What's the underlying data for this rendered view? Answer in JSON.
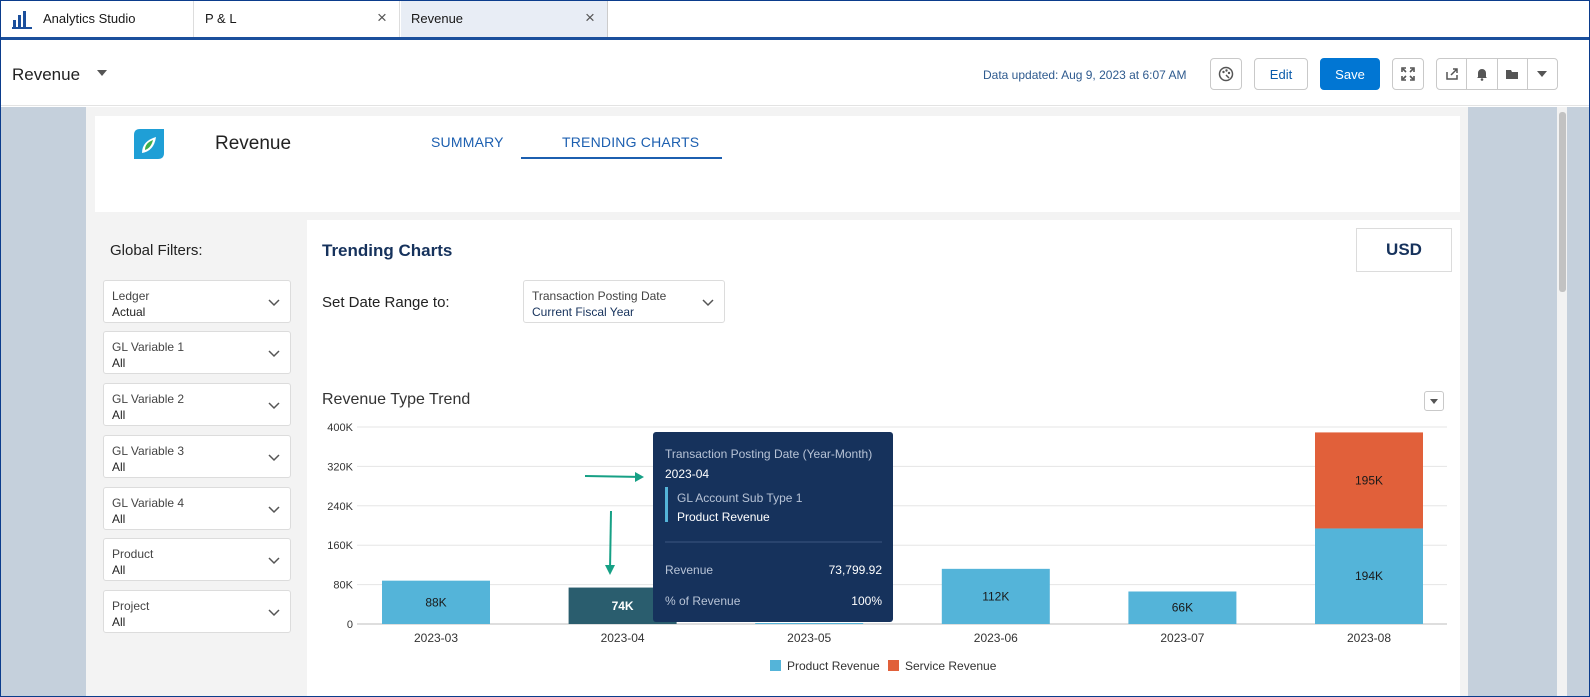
{
  "tabs": {
    "app_name": "Analytics Studio",
    "items": [
      {
        "label": "P & L"
      },
      {
        "label": "Revenue"
      }
    ]
  },
  "header": {
    "title": "Revenue",
    "data_updated": "Data updated: Aug 9, 2023 at 6:07 AM",
    "edit_label": "Edit",
    "save_label": "Save"
  },
  "dashboard": {
    "title": "Revenue",
    "nav_tabs": [
      "SUMMARY",
      "TRENDING CHARTS"
    ],
    "active_tab": "TRENDING CHARTS"
  },
  "filters": {
    "title": "Global Filters:",
    "items": [
      {
        "label": "Ledger",
        "value": "Actual"
      },
      {
        "label": "GL Variable 1",
        "value": "All"
      },
      {
        "label": "GL Variable 2",
        "value": "All"
      },
      {
        "label": "GL Variable 3",
        "value": "All"
      },
      {
        "label": "GL Variable 4",
        "value": "All"
      },
      {
        "label": "Product",
        "value": "All"
      },
      {
        "label": "Project",
        "value": "All"
      }
    ]
  },
  "main": {
    "title": "Trending Charts",
    "currency": "USD",
    "date_range_label": "Set Date Range to:",
    "date_selector": {
      "label": "Transaction Posting Date",
      "value": "Current Fiscal Year"
    }
  },
  "colors": {
    "product": "#54b4d9",
    "product_highlight": "#2a5d6e",
    "service": "#e1603a",
    "tooltip_bg": "#16325c",
    "arrow": "#16a085"
  },
  "chart_data": {
    "type": "bar",
    "stacked": true,
    "title": "Revenue Type Trend",
    "categories": [
      "2023-03",
      "2023-04",
      "2023-05",
      "2023-06",
      "2023-07",
      "2023-08"
    ],
    "series": [
      {
        "name": "Product Revenue",
        "values": [
          88000,
          74000,
          2000,
          112000,
          66000,
          194000
        ],
        "labels": [
          "88K",
          "74K",
          "",
          "112K",
          "66K",
          "194K"
        ]
      },
      {
        "name": "Service Revenue",
        "values": [
          0,
          0,
          0,
          0,
          0,
          195000
        ],
        "labels": [
          "",
          "",
          "",
          "",
          "",
          "195K"
        ]
      }
    ],
    "yticks": [
      "400K",
      "320K",
      "240K",
      "160K",
      "80K",
      "0"
    ],
    "ylim": [
      0,
      400000
    ],
    "grid": true,
    "legend_position": "bottom",
    "highlighted_category": "2023-04",
    "tooltip": {
      "header_label": "Transaction Posting Date (Year-Month)",
      "header_value": "2023-04",
      "group_label": "GL Account Sub Type 1",
      "group_value": "Product Revenue",
      "rows": [
        {
          "label": "Revenue",
          "value": "73,799.92"
        },
        {
          "label": "% of Revenue",
          "value": "100%"
        }
      ]
    }
  }
}
